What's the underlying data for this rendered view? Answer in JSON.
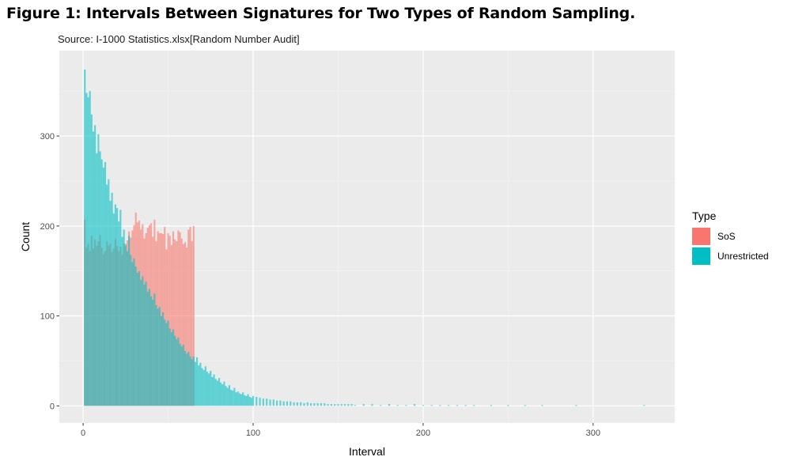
{
  "figure": {
    "title": "Figure 1: Intervals Between Signatures for Two Types of Random Sampling.",
    "subtitle": "Source: I-1000 Statistics.xlsx[Random Number Audit]"
  },
  "chart_data": {
    "type": "bar",
    "xlabel": "Interval",
    "ylabel": "Count",
    "xlim": [
      -14,
      348
    ],
    "ylim": [
      -19,
      395
    ],
    "x_ticks": [
      0,
      100,
      200,
      300
    ],
    "x_tick_labels": [
      "0",
      "100",
      "200",
      "300"
    ],
    "y_ticks": [
      0,
      100,
      200,
      300
    ],
    "y_tick_labels": [
      "0",
      "100",
      "200",
      "300"
    ],
    "grid": true,
    "legend": {
      "title": "Type",
      "position": "right",
      "entries": [
        {
          "label": "SoS",
          "color": "#F8766D"
        },
        {
          "label": "Unrestricted",
          "color": "#00BFC4"
        }
      ]
    },
    "bar_width": 1,
    "bar_opacity": 0.6,
    "series": [
      {
        "name": "SoS",
        "color": "#F8766D",
        "x": [
          1,
          2,
          3,
          4,
          5,
          6,
          7,
          8,
          9,
          10,
          11,
          12,
          13,
          14,
          15,
          16,
          17,
          18,
          19,
          20,
          21,
          22,
          23,
          24,
          25,
          26,
          27,
          28,
          29,
          30,
          31,
          32,
          33,
          34,
          35,
          36,
          37,
          38,
          39,
          40,
          41,
          42,
          43,
          44,
          45,
          46,
          47,
          48,
          49,
          50,
          51,
          52,
          53,
          54,
          55,
          56,
          57,
          58,
          59,
          60,
          61,
          62,
          63,
          64,
          65
        ],
        "values": [
          207,
          176,
          180,
          172,
          189,
          175,
          185,
          178,
          183,
          190,
          176,
          169,
          172,
          183,
          178,
          180,
          171,
          175,
          186,
          178,
          172,
          177,
          168,
          181,
          178,
          184,
          194,
          187,
          195,
          201,
          215,
          204,
          206,
          196,
          202,
          186,
          192,
          198,
          201,
          203,
          188,
          207,
          183,
          194,
          192,
          192,
          191,
          199,
          174,
          192,
          189,
          179,
          194,
          185,
          183,
          195,
          193,
          186,
          180,
          182,
          176,
          196,
          199,
          183,
          200
        ]
      },
      {
        "name": "Unrestricted",
        "color": "#00BFC4",
        "x": [
          1,
          2,
          3,
          4,
          5,
          6,
          7,
          8,
          9,
          10,
          11,
          12,
          13,
          14,
          15,
          16,
          17,
          18,
          19,
          20,
          21,
          22,
          23,
          24,
          25,
          26,
          27,
          28,
          29,
          30,
          31,
          32,
          33,
          34,
          35,
          36,
          37,
          38,
          39,
          40,
          41,
          42,
          43,
          44,
          45,
          46,
          47,
          48,
          49,
          50,
          51,
          52,
          53,
          54,
          55,
          56,
          57,
          58,
          59,
          60,
          61,
          62,
          63,
          64,
          65,
          66,
          67,
          68,
          69,
          70,
          71,
          72,
          73,
          74,
          75,
          76,
          77,
          78,
          79,
          80,
          81,
          82,
          83,
          84,
          85,
          86,
          87,
          88,
          89,
          90,
          91,
          92,
          93,
          94,
          95,
          96,
          97,
          98,
          99,
          100,
          102,
          104,
          106,
          108,
          110,
          112,
          114,
          116,
          118,
          120,
          122,
          124,
          126,
          128,
          130,
          132,
          134,
          136,
          138,
          140,
          142,
          144,
          146,
          148,
          150,
          152,
          154,
          156,
          158,
          160,
          165,
          170,
          175,
          180,
          185,
          190,
          195,
          200,
          205,
          210,
          215,
          220,
          225,
          230,
          240,
          250,
          260,
          270,
          290,
          330
        ],
        "values": [
          374,
          348,
          343,
          350,
          324,
          305,
          312,
          281,
          302,
          283,
          274,
          265,
          271,
          246,
          252,
          228,
          237,
          214,
          224,
          220,
          205,
          218,
          188,
          196,
          180,
          172,
          189,
          168,
          160,
          164,
          155,
          148,
          150,
          140,
          144,
          135,
          138,
          127,
          130,
          122,
          118,
          125,
          112,
          108,
          110,
          100,
          104,
          96,
          92,
          95,
          86,
          82,
          85,
          78,
          74,
          76,
          69,
          66,
          68,
          61,
          58,
          60,
          55,
          52,
          55,
          49,
          54,
          45,
          48,
          42,
          40,
          44,
          38,
          36,
          39,
          32,
          35,
          30,
          28,
          31,
          26,
          24,
          27,
          22,
          20,
          23,
          18,
          17,
          20,
          15,
          16,
          14,
          13,
          15,
          12,
          11,
          13,
          10,
          9,
          11,
          10,
          9,
          8,
          8,
          7,
          7,
          6,
          6,
          5,
          5,
          5,
          4,
          4,
          4,
          3,
          4,
          3,
          3,
          3,
          3,
          3,
          2,
          2,
          2,
          2,
          2,
          2,
          2,
          2,
          1,
          2,
          2,
          1,
          2,
          1,
          1,
          2,
          1,
          1,
          1,
          1,
          1,
          1,
          1,
          1,
          1,
          1,
          1,
          1,
          1
        ]
      }
    ]
  }
}
